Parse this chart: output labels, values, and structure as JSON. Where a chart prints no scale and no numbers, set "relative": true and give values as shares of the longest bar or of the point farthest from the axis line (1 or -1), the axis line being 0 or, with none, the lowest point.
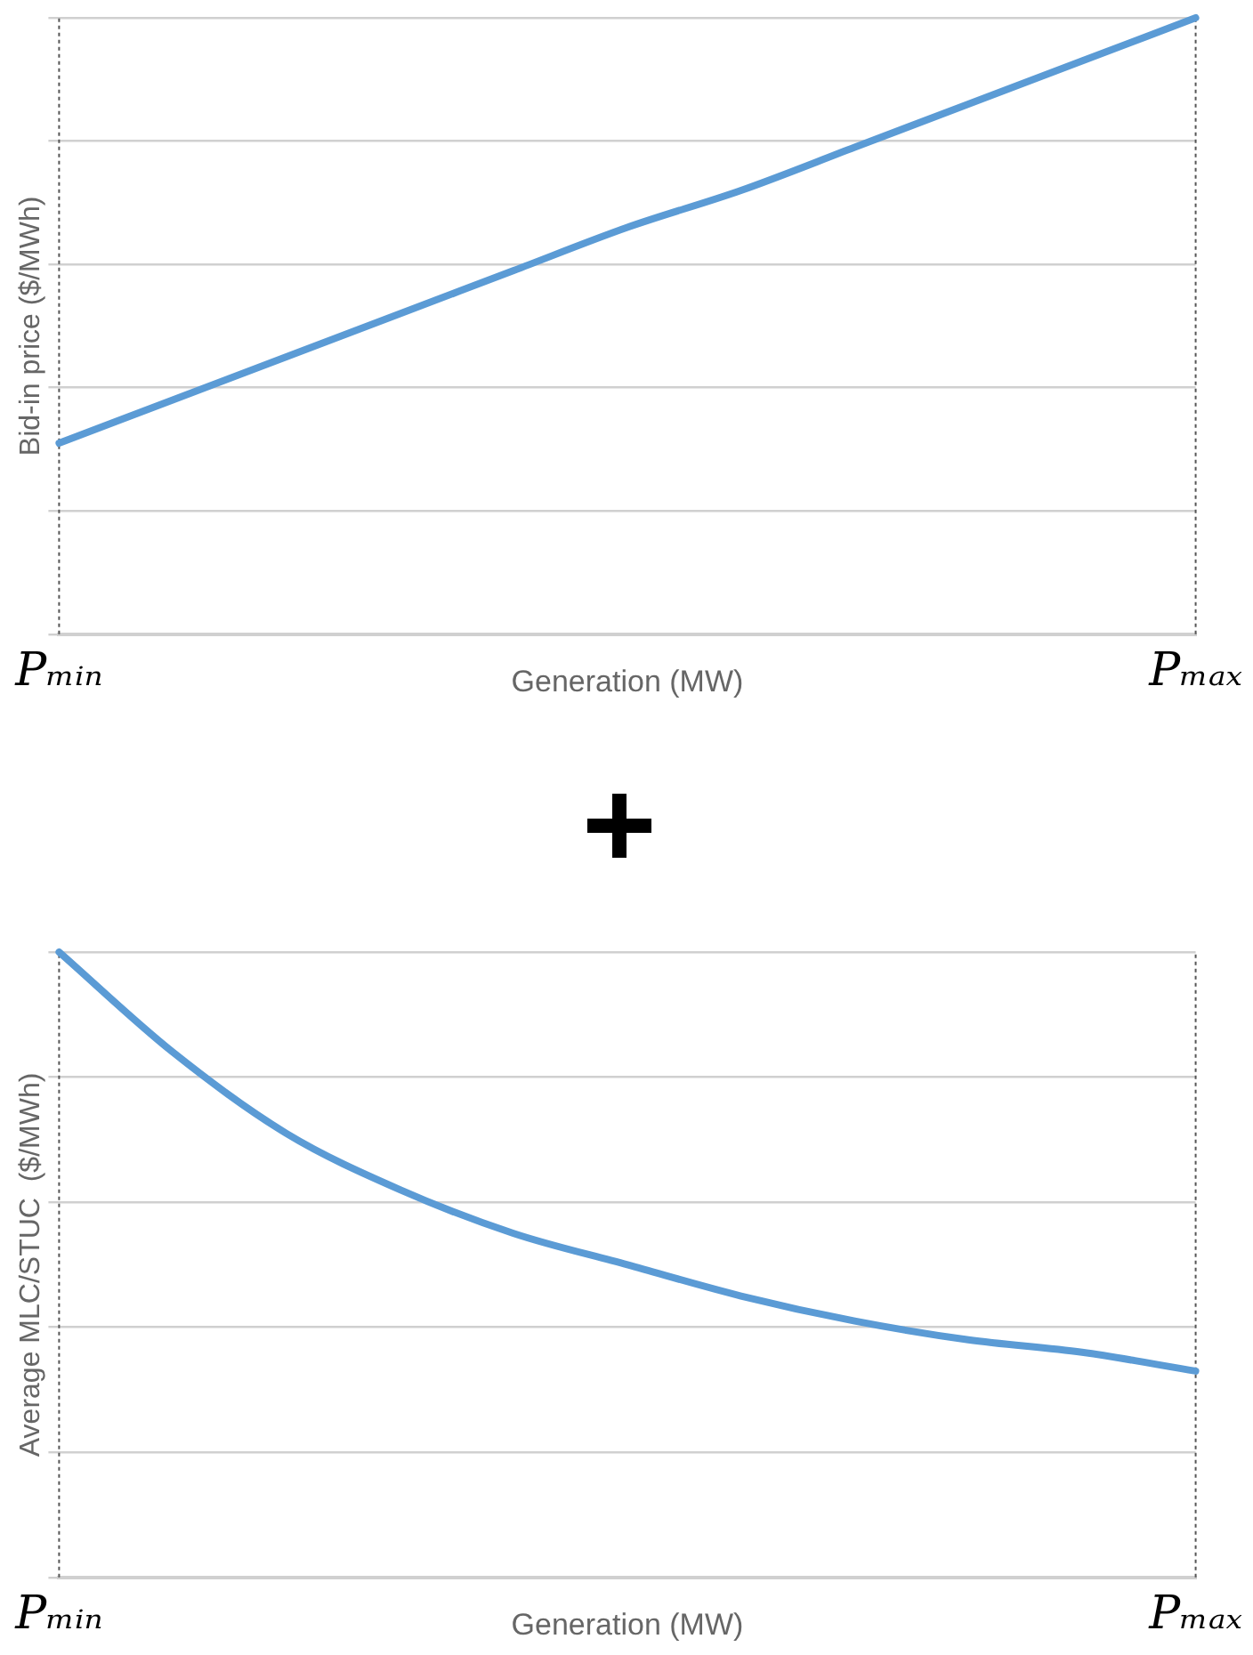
{
  "chart_data": [
    {
      "type": "line",
      "relative": true,
      "ylabel": "Bid-in price ($/MWh)",
      "xlabel": "Generation (MW)",
      "categories": [
        "Pₘᵢₙ",
        null,
        null,
        null,
        null,
        null,
        null,
        null,
        null,
        null,
        "Pₘₐₓ"
      ],
      "series": [
        {
          "color": "#5b9bd5",
          "values": [
            0.31,
            0.38,
            0.45,
            0.52,
            0.59,
            0.66,
            0.72,
            0.79,
            0.86,
            0.93,
            1
          ]
        }
      ],
      "grid": "y",
      "legend": false,
      "marker": "none",
      "line_style": "solid",
      "ref_lines": [
        {
          "axis": "x",
          "value": "Pₘᵢₙ",
          "color": "#555555",
          "line_style": "dotted"
        },
        {
          "axis": "x",
          "value": "Pₘₐₓ",
          "color": "#555555",
          "line_style": "dotted"
        }
      ]
    },
    {
      "type": "line",
      "relative": true,
      "ylabel": "Average MLC/STUC  ($/MWh)",
      "xlabel": "Generation (MW)",
      "categories": [
        "Pₘᵢₙ",
        null,
        null,
        null,
        null,
        null,
        null,
        null,
        null,
        null,
        "Pₘₐₓ"
      ],
      "series": [
        {
          "color": "#5b9bd5",
          "values": [
            1,
            0.84,
            0.71,
            0.62,
            0.55,
            0.5,
            0.45,
            0.41,
            0.38,
            0.36,
            0.33
          ]
        }
      ],
      "grid": "y",
      "legend": false,
      "marker": "none",
      "line_style": "solid",
      "ref_lines": [
        {
          "axis": "x",
          "value": "Pₘᵢₙ",
          "color": "#555555",
          "line_style": "dotted"
        },
        {
          "axis": "x",
          "value": "Pₘₐₓ",
          "color": "#555555",
          "line_style": "dotted"
        }
      ]
    }
  ]
}
